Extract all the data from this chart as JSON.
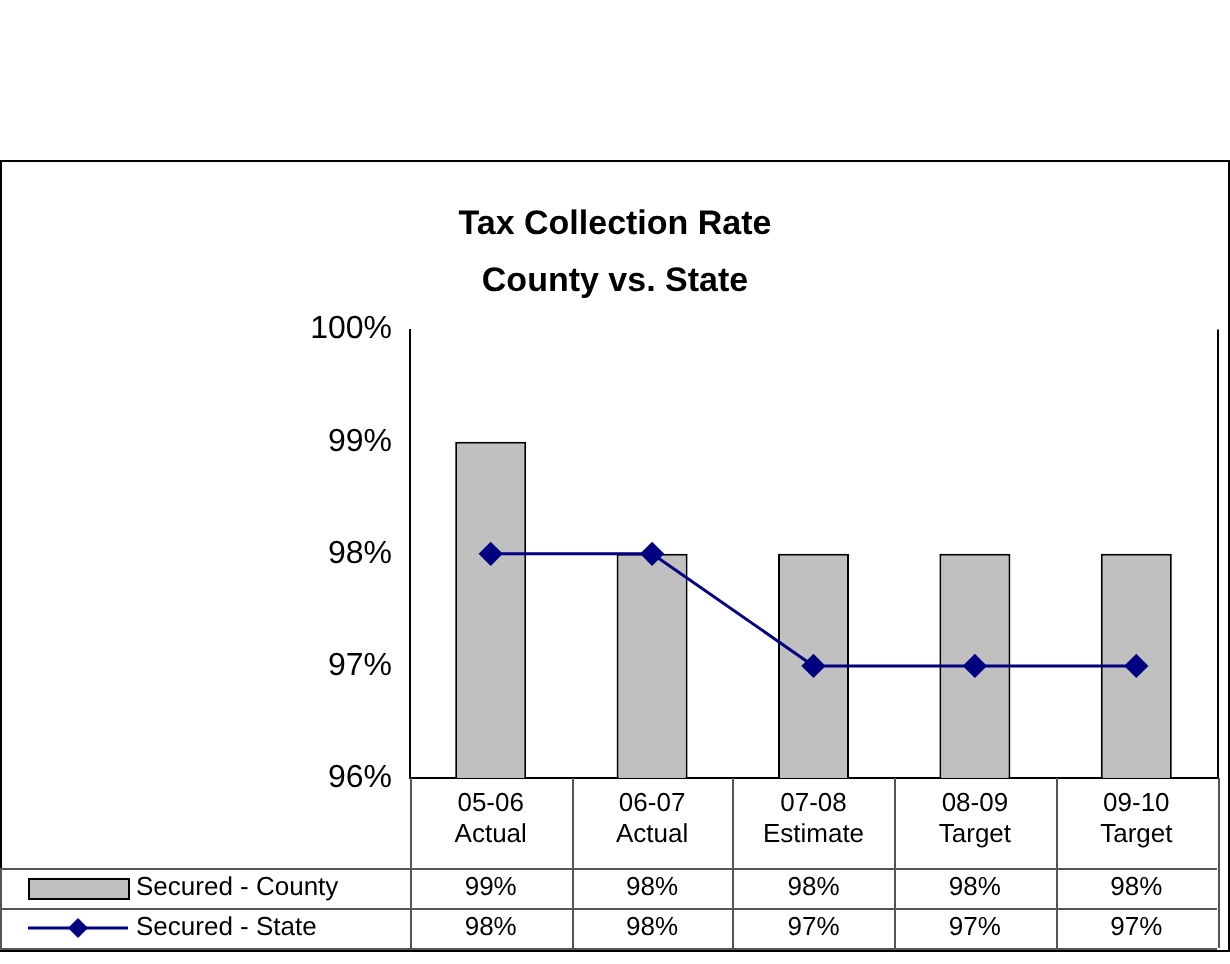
{
  "chart_data": {
    "type": "bar",
    "title": "Tax Collection Rate",
    "subtitle": "County vs. State",
    "categories": [
      "05-06\nActual",
      "06-07\nActual",
      "07-08\nEstimate",
      "08-09\nTarget",
      "09-10\nTarget"
    ],
    "series": [
      {
        "name": "Secured - County",
        "color": "#c0c0c0",
        "values": [
          99,
          98,
          98,
          98,
          98
        ],
        "value_labels": [
          "99%",
          "98%",
          "98%",
          "98%",
          "98%"
        ]
      },
      {
        "name": "Secured - State",
        "type": "line",
        "color": "#000080",
        "marker": "diamond",
        "values": [
          98,
          98,
          97,
          97,
          97
        ],
        "value_labels": [
          "98%",
          "98%",
          "97%",
          "97%",
          "97%"
        ]
      }
    ],
    "ylim": [
      96,
      100
    ],
    "yticks": [
      {
        "value": 96,
        "label": "96%"
      },
      {
        "value": 97,
        "label": "97%"
      },
      {
        "value": 98,
        "label": "98%"
      },
      {
        "value": 99,
        "label": "99%"
      },
      {
        "value": 100,
        "label": "100%"
      }
    ],
    "grid": false,
    "legend": "bottom left"
  }
}
